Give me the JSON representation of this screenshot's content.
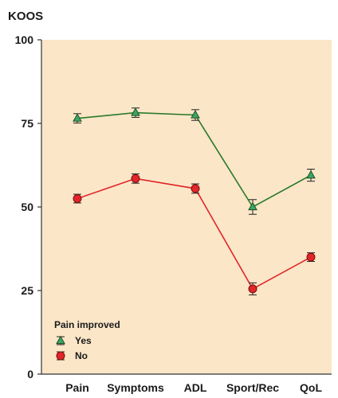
{
  "chart_data": {
    "type": "line",
    "title": "",
    "ylabel": "KOOS",
    "xlabel": "",
    "categories": [
      "Pain",
      "Symptoms",
      "ADL",
      "Sport/Rec",
      "QoL"
    ],
    "ylim": [
      0,
      100
    ],
    "yticks": [
      0,
      25,
      50,
      75,
      100
    ],
    "grid": false,
    "background_color": "#fbe6c8",
    "legend": {
      "title": "Pain improved",
      "placement": "bottom-left"
    },
    "series": [
      {
        "name": "Yes",
        "marker": "triangle",
        "color": "#2a7a2a",
        "marker_fill": "#3aa66a",
        "values": [
          76.5,
          78.2,
          77.5,
          50.0,
          59.5
        ],
        "err": [
          1.4,
          1.4,
          1.6,
          2.2,
          1.8
        ]
      },
      {
        "name": "No",
        "marker": "circle",
        "color": "#e0262a",
        "marker_fill": "#e0262a",
        "values": [
          52.5,
          58.5,
          55.5,
          25.5,
          35.0
        ],
        "err": [
          1.3,
          1.4,
          1.4,
          1.8,
          1.3
        ]
      }
    ]
  }
}
